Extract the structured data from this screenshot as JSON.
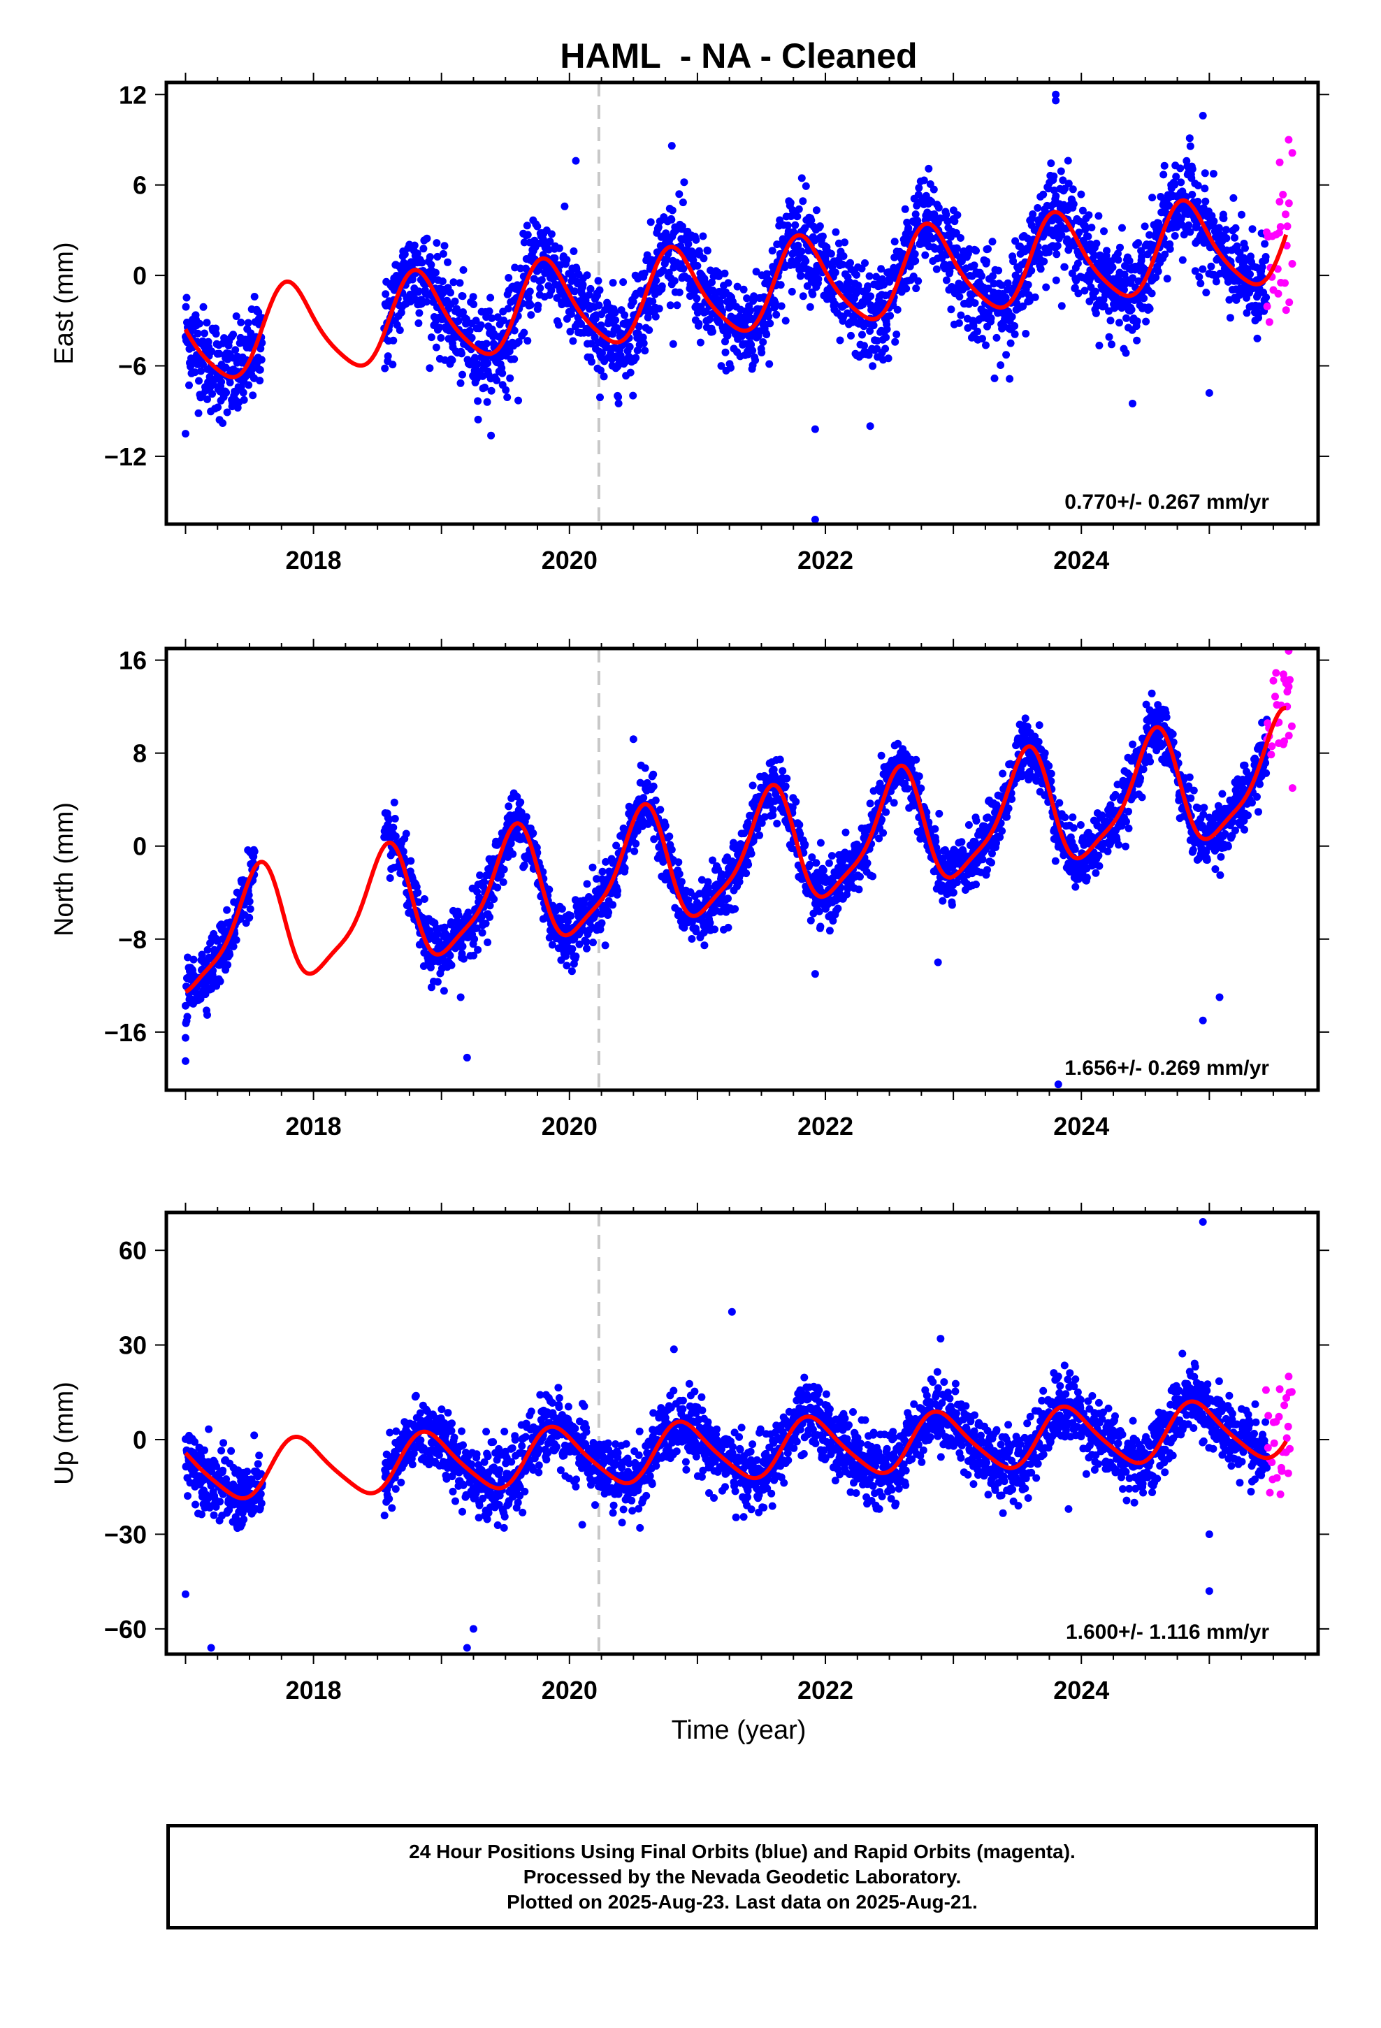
{
  "colors": {
    "final": "#0000ff",
    "rapid": "#ff00ff",
    "model": "#ff0000",
    "event_line": "#c8c8c8"
  },
  "chart_data": [
    {
      "type": "scatter",
      "title": "HAML  - NA - Cleaned",
      "ylabel": "East (mm)",
      "xlabel": "",
      "xlim": [
        2016.85,
        2025.85
      ],
      "ylim": [
        -16.5,
        12.8
      ],
      "yticks": [
        12,
        6,
        0,
        -6,
        -12
      ],
      "yticks_labels": [
        "12",
        "6",
        "0",
        "−6",
        "−12"
      ],
      "xticks": [
        2018,
        2020,
        2022,
        2024
      ],
      "xticks_labels": [
        "2018",
        "2020",
        "2022",
        "2024"
      ],
      "event_line": 2020.23,
      "rate_text": "0.770+/- 0.267 mm/yr",
      "model": {
        "t0": 2020.0,
        "offset": -2.0,
        "trend": 0.77,
        "amp_annual": 2.9,
        "peak_annual": 2019.82,
        "amp_semiannual": 0.5,
        "peak_semiannual": 2019.75,
        "start": 2017.0,
        "end": 2025.6
      },
      "gaps": [
        [
          2017.6,
          2018.55
        ]
      ],
      "scatter": {
        "spread": 1.6,
        "final_range": [
          2017.0,
          2025.45
        ],
        "rapid_range": [
          2025.45,
          2025.65
        ]
      },
      "outliers": [
        [
          2017.0,
          -10.5
        ],
        [
          2020.05,
          7.6
        ],
        [
          2020.8,
          8.6
        ],
        [
          2021.92,
          -10.2
        ],
        [
          2021.92,
          -16.2
        ],
        [
          2022.35,
          -10.0
        ],
        [
          2023.8,
          12.0
        ],
        [
          2023.8,
          11.6
        ],
        [
          2024.95,
          10.6
        ],
        [
          2024.4,
          -8.5
        ],
        [
          2025.0,
          -7.8
        ],
        [
          2019.6,
          -8.3
        ]
      ],
      "rapid_extremes": [
        [
          2025.62,
          9.0
        ],
        [
          2025.6,
          -2.3
        ],
        [
          2025.55,
          7.5
        ]
      ]
    },
    {
      "type": "scatter",
      "title": "",
      "ylabel": "North (mm)",
      "xlabel": "",
      "xlim": [
        2016.85,
        2025.85
      ],
      "ylim": [
        -21,
        17
      ],
      "yticks": [
        16,
        8,
        0,
        -8,
        -16
      ],
      "yticks_labels": [
        "16",
        "8",
        "0",
        "−8",
        "−16"
      ],
      "xticks": [
        2018,
        2020,
        2022,
        2024
      ],
      "xticks_labels": [
        "2018",
        "2020",
        "2022",
        "2024"
      ],
      "event_line": 2020.23,
      "rate_text": "1.656+/- 0.269 mm/yr",
      "model": {
        "t0": 2020.0,
        "offset": -3.2,
        "trend": 1.656,
        "amp_annual": 4.8,
        "peak_annual": 2019.56,
        "amp_semiannual": 1.2,
        "peak_semiannual": 2019.62,
        "start": 2017.0,
        "end": 2025.6
      },
      "gaps": [
        [
          2017.55,
          2018.55
        ]
      ],
      "scatter": {
        "spread": 1.3,
        "final_range": [
          2017.0,
          2025.45
        ],
        "rapid_range": [
          2025.45,
          2025.65
        ]
      },
      "outliers": [
        [
          2017.0,
          -16.5
        ],
        [
          2017.0,
          -18.5
        ],
        [
          2019.2,
          -18.2
        ],
        [
          2019.15,
          -13.0
        ],
        [
          2023.82,
          -20.5
        ],
        [
          2024.95,
          -15.0
        ],
        [
          2025.08,
          -13.0
        ],
        [
          2022.88,
          -10.0
        ],
        [
          2021.92,
          -11.0
        ],
        [
          2020.5,
          9.2
        ],
        [
          2024.6,
          10.2
        ]
      ],
      "rapid_extremes": [
        [
          2025.62,
          16.8
        ],
        [
          2025.6,
          14.0
        ],
        [
          2025.65,
          5.0
        ]
      ]
    },
    {
      "type": "scatter",
      "title": "",
      "ylabel": "Up (mm)",
      "xlabel": "Time (year)",
      "xlim": [
        2016.85,
        2025.85
      ],
      "ylim": [
        -68,
        72
      ],
      "yticks": [
        60,
        30,
        0,
        -30,
        -60
      ],
      "yticks_labels": [
        "60",
        "30",
        "0",
        "−30",
        "−60"
      ],
      "xticks": [
        2018,
        2020,
        2022,
        2024
      ],
      "xticks_labels": [
        "2018",
        "2020",
        "2022",
        "2024"
      ],
      "event_line": 2020.23,
      "rate_text": "1.600+/- 1.116 mm/yr",
      "model": {
        "t0": 2020.0,
        "offset": -5.5,
        "trend": 1.6,
        "amp_annual": 9.0,
        "peak_annual": 2019.9,
        "amp_semiannual": 1.5,
        "peak_semiannual": 2019.8,
        "start": 2017.0,
        "end": 2025.6
      },
      "gaps": [
        [
          2017.6,
          2018.55
        ]
      ],
      "scatter": {
        "spread": 5.5,
        "final_range": [
          2017.0,
          2025.45
        ],
        "rapid_range": [
          2025.45,
          2025.65
        ]
      },
      "outliers": [
        [
          2017.0,
          -49
        ],
        [
          2017.2,
          -66
        ],
        [
          2019.2,
          -66
        ],
        [
          2019.25,
          -60
        ],
        [
          2021.27,
          40.5
        ],
        [
          2024.95,
          69
        ],
        [
          2025.0,
          -48
        ],
        [
          2025.0,
          -30
        ],
        [
          2022.9,
          32
        ],
        [
          2020.1,
          -27
        ],
        [
          2023.9,
          -22
        ]
      ],
      "rapid_extremes": [
        [
          2025.62,
          20
        ],
        [
          2025.6,
          -4
        ],
        [
          2025.55,
          16
        ]
      ]
    }
  ],
  "footer": {
    "line1": "24 Hour Positions Using Final Orbits (blue) and Rapid Orbits (magenta).",
    "line2": "Processed by the Nevada Geodetic Laboratory.",
    "line3": "Plotted on 2025-Aug-23. Last data on 2025-Aug-21."
  }
}
